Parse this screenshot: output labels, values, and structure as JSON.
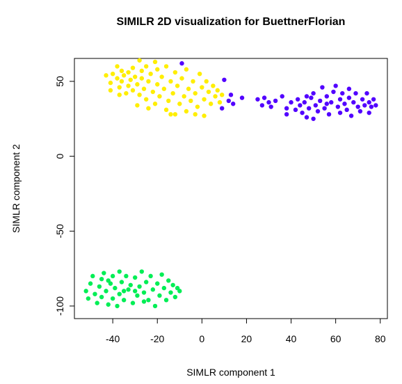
{
  "chart_data": {
    "type": "scatter",
    "title": "SIMILR 2D visualization for BuettnerFlorian",
    "x_label": "SIMLR component 1",
    "y_label": "SIMLR component 2",
    "xlim": [
      -57.2,
      83.2
    ],
    "ylim": [
      -108.4,
      65.3
    ],
    "xticks": [
      -40,
      -20,
      0,
      20,
      40,
      60,
      80
    ],
    "yticks": [
      -100,
      -50,
      0,
      50
    ],
    "grid": false,
    "series": [
      {
        "color": "#ffee00",
        "x": [
          -43,
          -41,
          -40,
          -38,
          -38,
          -37,
          -36,
          -36,
          -35,
          -34,
          -33,
          -33,
          -32,
          -31,
          -31,
          -30,
          -29,
          -28,
          -28,
          -27,
          -27,
          -26,
          -25,
          -25,
          -24,
          -23,
          -22,
          -21,
          -21,
          -20,
          -20,
          -19,
          -18,
          -17,
          -16,
          -16,
          -15,
          -14,
          -13,
          -12,
          -12,
          -11,
          -10,
          -9,
          -8,
          -7,
          -7,
          -6,
          -5,
          -4,
          -3,
          -2,
          -1,
          0,
          1,
          1,
          2,
          3,
          4,
          5,
          6,
          7,
          8,
          9,
          -29,
          -37,
          -24,
          -14,
          -3,
          -41
        ],
        "values": [
          54,
          49,
          55,
          60,
          52,
          46,
          57,
          50,
          54,
          42,
          56,
          47,
          51,
          59,
          44,
          53,
          48,
          64,
          41,
          57,
          52,
          45,
          60,
          38,
          50,
          55,
          43,
          63,
          35,
          48,
          58,
          40,
          53,
          45,
          31,
          60,
          37,
          50,
          42,
          56,
          28,
          47,
          35,
          52,
          40,
          58,
          30,
          45,
          37,
          50,
          42,
          33,
          55,
          46,
          27,
          38,
          50,
          43,
          35,
          47,
          40,
          44,
          36,
          41,
          34,
          41,
          32,
          28,
          28,
          44
        ]
      },
      {
        "color": "#5200ff",
        "x": [
          -9,
          10,
          9,
          12,
          13,
          14,
          18,
          25,
          27,
          28,
          30,
          31,
          33,
          36,
          38,
          40,
          42,
          43,
          44,
          45,
          46,
          47,
          48,
          49,
          50,
          50,
          51,
          52,
          53,
          54,
          55,
          56,
          57,
          58,
          59,
          60,
          61,
          62,
          62,
          63,
          64,
          65,
          66,
          67,
          68,
          69,
          70,
          71,
          72,
          73,
          74,
          75,
          75,
          76,
          77,
          78,
          56,
          66,
          47,
          38
        ],
        "values": [
          62,
          51,
          32,
          37,
          41,
          35,
          39,
          38,
          34,
          39,
          36,
          33,
          37,
          40,
          32,
          36,
          31,
          38,
          34,
          29,
          36,
          26,
          32,
          39,
          42,
          25,
          34,
          30,
          37,
          46,
          32,
          40,
          28,
          36,
          43,
          47,
          33,
          38,
          29,
          42,
          35,
          31,
          39,
          27,
          36,
          42,
          33,
          30,
          38,
          34,
          42,
          29,
          36,
          33,
          38,
          34,
          35,
          45,
          40,
          28
        ]
      },
      {
        "color": "#00ee55",
        "x": [
          -52,
          -51,
          -50,
          -49,
          -48,
          -47,
          -46,
          -45,
          -45,
          -44,
          -43,
          -42,
          -41,
          -40,
          -40,
          -39,
          -38,
          -37,
          -37,
          -36,
          -35,
          -34,
          -33,
          -32,
          -31,
          -30,
          -29,
          -28,
          -27,
          -26,
          -25,
          -24,
          -23,
          -22,
          -21,
          -20,
          -19,
          -18,
          -17,
          -16,
          -15,
          -14,
          -13,
          -12,
          -11,
          -10,
          -42,
          -30,
          -26,
          -35
        ],
        "values": [
          -90,
          -95,
          -85,
          -80,
          -92,
          -98,
          -87,
          -82,
          -94,
          -78,
          -90,
          -99,
          -85,
          -80,
          -95,
          -88,
          -100,
          -77,
          -92,
          -84,
          -96,
          -80,
          -89,
          -86,
          -98,
          -81,
          -93,
          -87,
          -77,
          -91,
          -84,
          -96,
          -80,
          -89,
          -100,
          -85,
          -93,
          -79,
          -88,
          -96,
          -83,
          -91,
          -86,
          -94,
          -88,
          -90,
          -83,
          -90,
          -97,
          -90
        ]
      }
    ]
  }
}
